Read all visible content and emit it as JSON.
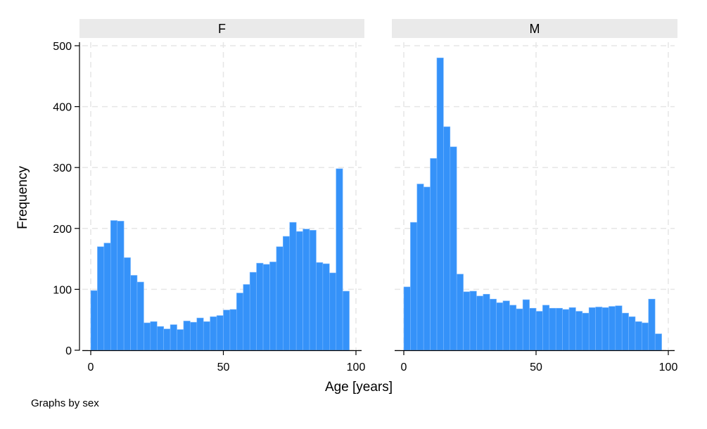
{
  "chart_data": {
    "type": "bar",
    "subtype": "histogram",
    "ylabel": "Frequency",
    "xlabel": "Age [years]",
    "note": "Graphs by sex",
    "bin_width": 2.5,
    "bin_start": 0,
    "xlim": [
      0,
      100
    ],
    "ylim": [
      0,
      500
    ],
    "xticks": [
      "0",
      "50",
      "100"
    ],
    "yticks": [
      "0",
      "100",
      "200",
      "300",
      "400",
      "500"
    ],
    "grid": true,
    "bar_color": "#3592f9",
    "panel_header_color": "#eaeaea",
    "panels": [
      {
        "title": "F",
        "values": [
          98,
          170,
          176,
          213,
          212,
          152,
          123,
          112,
          45,
          47,
          39,
          35,
          42,
          34,
          48,
          46,
          53,
          47,
          55,
          57,
          66,
          67,
          94,
          108,
          128,
          143,
          141,
          145,
          170,
          187,
          210,
          195,
          199,
          197,
          144,
          142,
          127,
          298,
          97
        ]
      },
      {
        "title": "M",
        "values": [
          104,
          210,
          273,
          268,
          315,
          480,
          367,
          334,
          125,
          96,
          97,
          89,
          92,
          84,
          78,
          81,
          74,
          68,
          83,
          69,
          64,
          74,
          69,
          69,
          67,
          70,
          64,
          61,
          70,
          71,
          70,
          72,
          73,
          61,
          55,
          47,
          45,
          84,
          27
        ]
      }
    ]
  }
}
